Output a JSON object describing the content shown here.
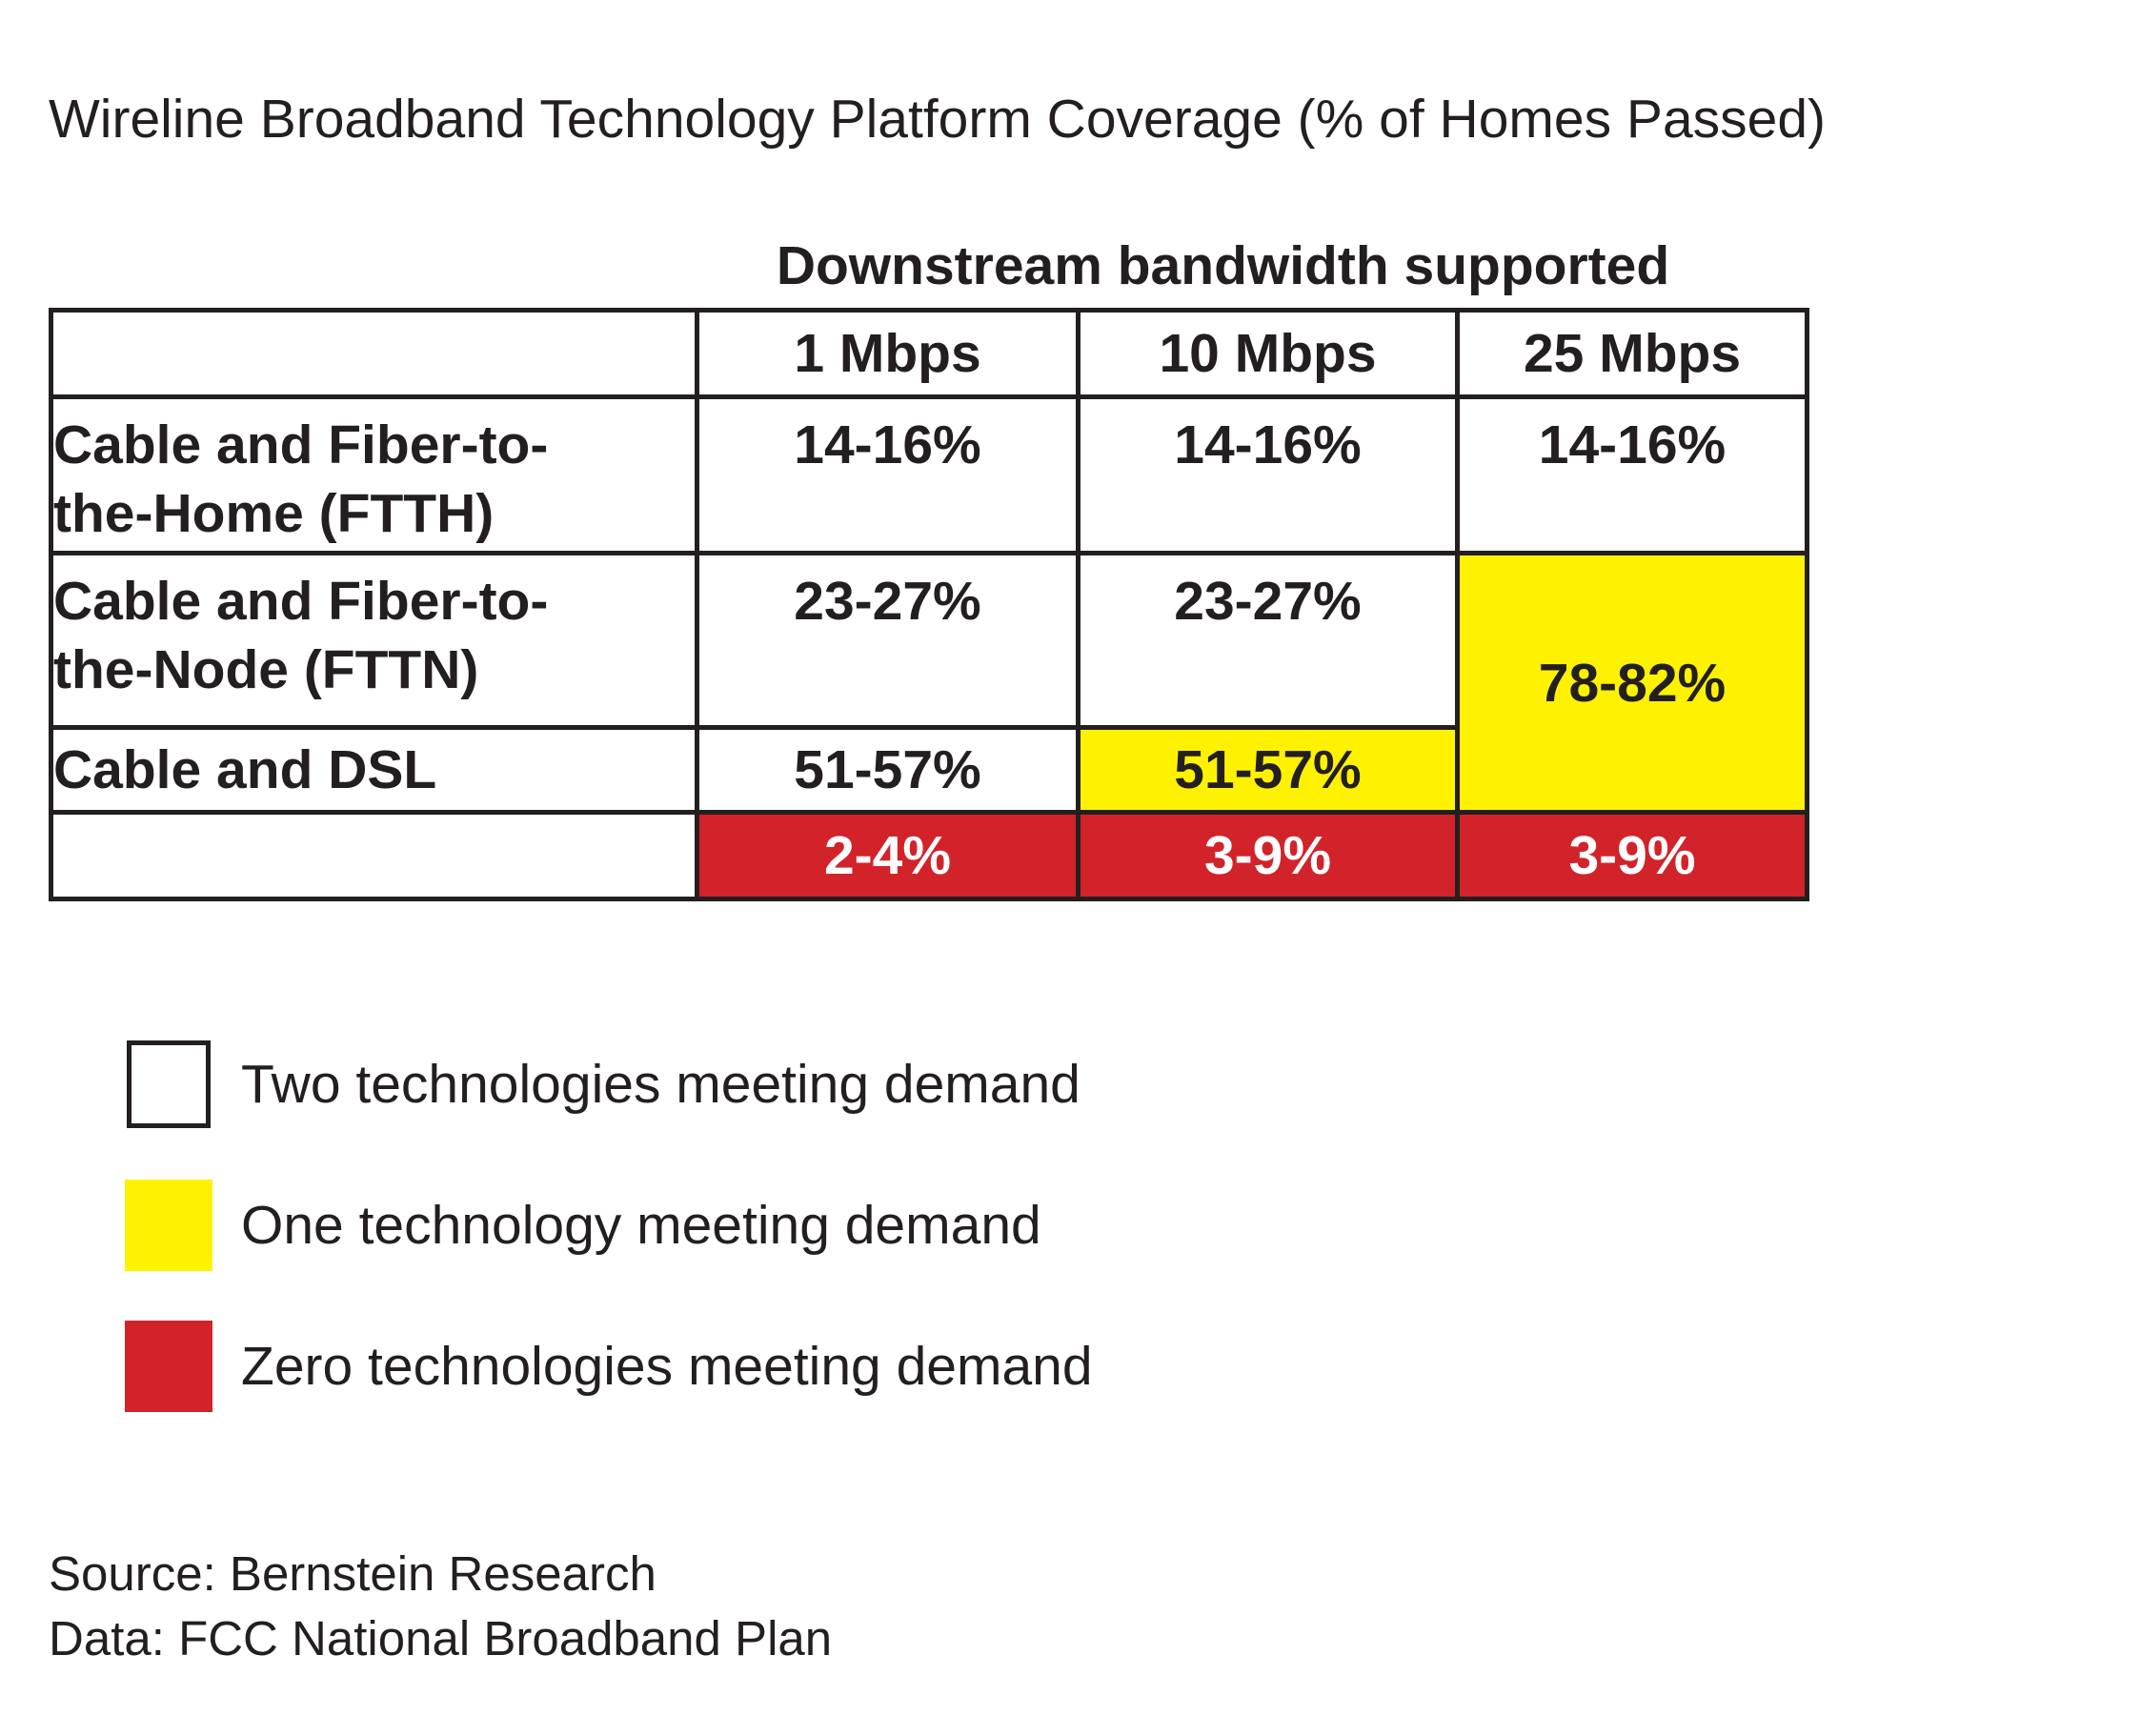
{
  "chart_data": {
    "type": "table",
    "title": "Wireline Broadband Technology Platform Coverage (% of Homes Passed)",
    "column_group_label": "Downstream bandwidth supported",
    "columns": [
      "1 Mbps",
      "10 Mbps",
      "25 Mbps"
    ],
    "rows": [
      {
        "label_lines": [
          "Cable and Fiber-to-",
          "the-Home (FTTH)"
        ],
        "cells": [
          {
            "text": "14-16%",
            "status": "two"
          },
          {
            "text": "14-16%",
            "status": "two"
          },
          {
            "text": "14-16%",
            "status": "two"
          }
        ]
      },
      {
        "label_lines": [
          "Cable and Fiber-to-",
          "the-Node (FTTN)"
        ],
        "cells": [
          {
            "text": "23-27%",
            "status": "two"
          },
          {
            "text": "23-27%",
            "status": "two"
          },
          {
            "text": "78-82%",
            "status": "one",
            "rowspan": 2
          }
        ]
      },
      {
        "label_lines": [
          "Cable and DSL"
        ],
        "cells": [
          {
            "text": "51-57%",
            "status": "two"
          },
          {
            "text": "51-57%",
            "status": "one"
          }
        ]
      },
      {
        "label_lines": [
          ""
        ],
        "cells": [
          {
            "text": "2-4%",
            "status": "zero"
          },
          {
            "text": "3-9%",
            "status": "zero"
          },
          {
            "text": "3-9%",
            "status": "zero"
          }
        ]
      }
    ],
    "legend": [
      {
        "label": "Two technologies meeting demand",
        "status": "two",
        "color": "#ffffff"
      },
      {
        "label": "One technology meeting demand",
        "status": "one",
        "color": "#fff200"
      },
      {
        "label": "Zero technologies meeting demand",
        "status": "zero",
        "color": "#d2232a"
      }
    ]
  },
  "footer": {
    "source": "Source: Bernstein Research",
    "data": "Data: FCC National Broadband Plan"
  },
  "colors": {
    "two": "#ffffff",
    "one": "#fff200",
    "zero": "#d2232a",
    "border": "#231f20"
  }
}
